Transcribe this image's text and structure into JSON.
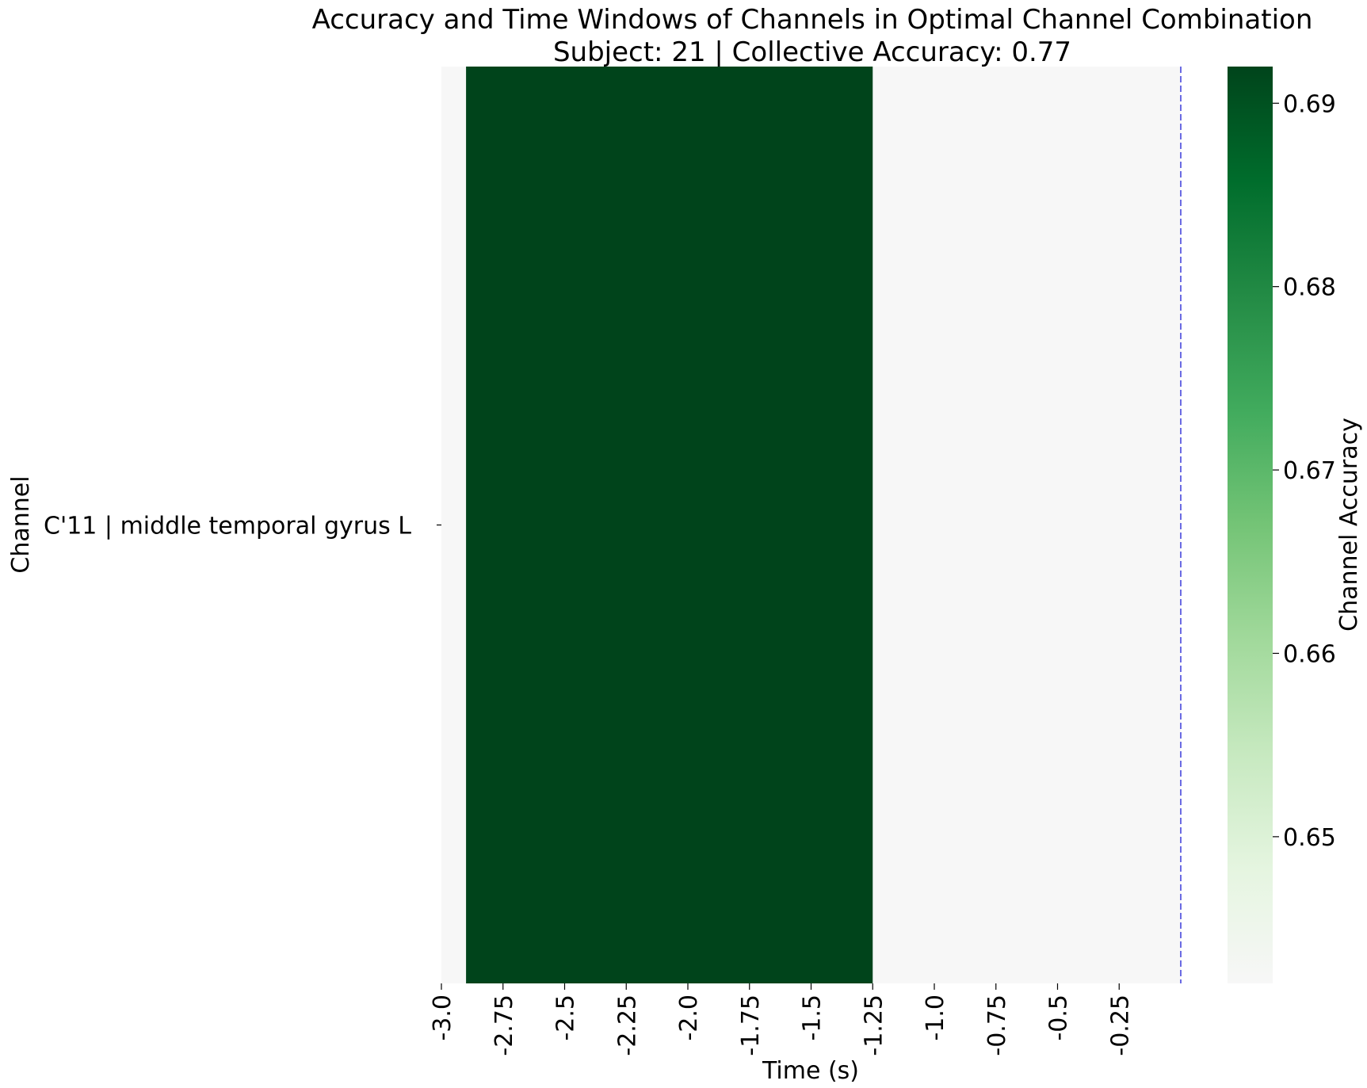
{
  "chart_data": {
    "type": "heatmap",
    "title": "Accuracy and Time Windows of Channels in Optimal Channel Combination",
    "subtitle": "Subject: 21 | Collective Accuracy: 0.77",
    "xlabel": "Time (s)",
    "ylabel": "Channel",
    "x_ticks": [
      "-3.0",
      "-2.75",
      "-2.5",
      "-2.25",
      "-2.0",
      "-1.75",
      "-1.5",
      "-1.25",
      "-1.0",
      "-0.75",
      "-0.5",
      "-0.25"
    ],
    "xlim": [
      -3.0,
      0.0
    ],
    "channels": [
      "C'11 | middle temporal gyrus L"
    ],
    "windows": [
      {
        "channel": "C'11 | middle temporal gyrus L",
        "start": -2.9,
        "end": -1.25,
        "accuracy": 0.692
      }
    ],
    "vline_x": 0.0,
    "vline_color": "#3b3bdb",
    "background_color": "#f7f7f7",
    "colorbar": {
      "label": "Channel Accuracy",
      "ticks": [
        "0.65",
        "0.66",
        "0.67",
        "0.68",
        "0.69"
      ],
      "range": [
        0.642,
        0.692
      ],
      "colormap": "Greens",
      "stops": [
        "#f7f7f7",
        "#e5f5e0",
        "#c7e9c0",
        "#a1d99b",
        "#74c476",
        "#41ab5d",
        "#238b45",
        "#006d2c",
        "#00441b"
      ]
    }
  }
}
